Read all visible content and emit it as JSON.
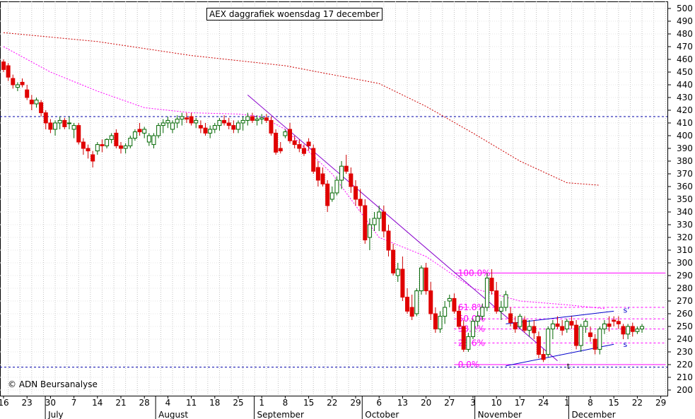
{
  "title": "AEX daggrafiek woensdag 17 december",
  "credit": "© ADN Beursanalyse",
  "chart_data": {
    "type": "candlestick",
    "title": "AEX daggrafiek woensdag 17 december",
    "y_range": [
      200,
      500
    ],
    "y_ticks": [
      200,
      210,
      220,
      230,
      240,
      250,
      260,
      270,
      280,
      290,
      300,
      310,
      320,
      330,
      340,
      350,
      360,
      370,
      380,
      390,
      400,
      410,
      420,
      430,
      440,
      450,
      460,
      470,
      480,
      490,
      500
    ],
    "grid": true,
    "x_range": [
      0,
      136
    ],
    "x_ticks": [
      {
        "i": 0,
        "label": "16"
      },
      {
        "i": 5,
        "label": "23"
      },
      {
        "i": 10,
        "label": "30"
      },
      {
        "i": 15,
        "label": "7"
      },
      {
        "i": 20,
        "label": "14"
      },
      {
        "i": 25,
        "label": "21"
      },
      {
        "i": 30,
        "label": "28"
      },
      {
        "i": 35,
        "label": "4"
      },
      {
        "i": 40,
        "label": "11"
      },
      {
        "i": 45,
        "label": "18"
      },
      {
        "i": 50,
        "label": "25"
      },
      {
        "i": 55,
        "label": "1"
      },
      {
        "i": 60,
        "label": "8"
      },
      {
        "i": 65,
        "label": "15"
      },
      {
        "i": 70,
        "label": "22"
      },
      {
        "i": 75,
        "label": "29"
      },
      {
        "i": 80,
        "label": "6"
      },
      {
        "i": 85,
        "label": "13"
      },
      {
        "i": 90,
        "label": "20"
      },
      {
        "i": 95,
        "label": "27"
      },
      {
        "i": 100,
        "label": "3"
      },
      {
        "i": 105,
        "label": "10"
      },
      {
        "i": 110,
        "label": "17"
      },
      {
        "i": 115,
        "label": "24"
      },
      {
        "i": 120,
        "label": "1"
      },
      {
        "i": 125,
        "label": "8"
      },
      {
        "i": 130,
        "label": "15"
      },
      {
        "i": 135,
        "label": "22"
      },
      {
        "i": 140,
        "label": "29"
      }
    ],
    "months": [
      {
        "i": 9.5,
        "label": "July"
      },
      {
        "i": 33,
        "label": "August"
      },
      {
        "i": 54,
        "label": "September"
      },
      {
        "i": 77,
        "label": "October"
      },
      {
        "i": 101,
        "label": "November"
      },
      {
        "i": 121,
        "label": "December"
      }
    ],
    "candles": [
      [
        458,
        460,
        450,
        452
      ],
      [
        455,
        457,
        443,
        446
      ],
      [
        445,
        448,
        437,
        440
      ],
      [
        438,
        442,
        435,
        440
      ],
      [
        442,
        445,
        438,
        440
      ],
      [
        436,
        440,
        428,
        430
      ],
      [
        428,
        432,
        420,
        425
      ],
      [
        425,
        430,
        422,
        428
      ],
      [
        426,
        428,
        415,
        418
      ],
      [
        418,
        420,
        405,
        410
      ],
      [
        410,
        413,
        402,
        405
      ],
      [
        405,
        412,
        400,
        410
      ],
      [
        410,
        415,
        405,
        412
      ],
      [
        412,
        414,
        405,
        407
      ],
      [
        410,
        415,
        405,
        410
      ],
      [
        405,
        410,
        398,
        408
      ],
      [
        408,
        410,
        393,
        395
      ],
      [
        395,
        398,
        385,
        390
      ],
      [
        390,
        393,
        382,
        388
      ],
      [
        385,
        388,
        375,
        380
      ],
      [
        388,
        395,
        385,
        393
      ],
      [
        393,
        397,
        387,
        392
      ],
      [
        392,
        398,
        390,
        397
      ],
      [
        397,
        402,
        394,
        400
      ],
      [
        402,
        405,
        390,
        392
      ],
      [
        392,
        395,
        386,
        390
      ],
      [
        390,
        394,
        386,
        392
      ],
      [
        392,
        400,
        390,
        398
      ],
      [
        398,
        405,
        396,
        403
      ],
      [
        405,
        410,
        400,
        403
      ],
      [
        402,
        407,
        398,
        405
      ],
      [
        395,
        402,
        392,
        400
      ],
      [
        393,
        402,
        390,
        400
      ],
      [
        400,
        410,
        398,
        408
      ],
      [
        408,
        413,
        402,
        410
      ],
      [
        410,
        415,
        406,
        412
      ],
      [
        405,
        412,
        402,
        410
      ],
      [
        410,
        416,
        406,
        413
      ],
      [
        413,
        418,
        408,
        415
      ],
      [
        414,
        418,
        410,
        413
      ],
      [
        415,
        418,
        408,
        410
      ],
      [
        410,
        414,
        406,
        412
      ],
      [
        408,
        412,
        402,
        406
      ],
      [
        406,
        410,
        400,
        402
      ],
      [
        402,
        408,
        398,
        405
      ],
      [
        405,
        410,
        402,
        408
      ],
      [
        408,
        414,
        404,
        412
      ],
      [
        412,
        416,
        408,
        410
      ],
      [
        410,
        414,
        405,
        408
      ],
      [
        408,
        412,
        402,
        405
      ],
      [
        405,
        412,
        402,
        410
      ],
      [
        410,
        415,
        404,
        412
      ],
      [
        412,
        418,
        408,
        415
      ],
      [
        415,
        418,
        410,
        412
      ],
      [
        412,
        416,
        408,
        413
      ],
      [
        413,
        417,
        409,
        414
      ],
      [
        414,
        417,
        410,
        412
      ],
      [
        412,
        415,
        400,
        402
      ],
      [
        402,
        405,
        385,
        387
      ],
      [
        390,
        395,
        386,
        388
      ],
      [
        400,
        405,
        398,
        403
      ],
      [
        405,
        410,
        394,
        396
      ],
      [
        396,
        400,
        390,
        393
      ],
      [
        393,
        397,
        387,
        390
      ],
      [
        390,
        393,
        384,
        386
      ],
      [
        395,
        398,
        388,
        392
      ],
      [
        390,
        393,
        370,
        372
      ],
      [
        375,
        380,
        360,
        365
      ],
      [
        370,
        375,
        360,
        362
      ],
      [
        362,
        365,
        340,
        345
      ],
      [
        350,
        360,
        348,
        355
      ],
      [
        355,
        368,
        353,
        365
      ],
      [
        365,
        380,
        358,
        376
      ],
      [
        376,
        385,
        370,
        372
      ],
      [
        370,
        375,
        355,
        360
      ],
      [
        360,
        365,
        345,
        350
      ],
      [
        350,
        358,
        340,
        345
      ],
      [
        345,
        350,
        315,
        318
      ],
      [
        320,
        335,
        310,
        330
      ],
      [
        330,
        340,
        325,
        335
      ],
      [
        335,
        345,
        325,
        340
      ],
      [
        340,
        345,
        320,
        325
      ],
      [
        325,
        330,
        305,
        310
      ],
      [
        310,
        315,
        290,
        292
      ],
      [
        290,
        300,
        285,
        295
      ],
      [
        295,
        305,
        270,
        273
      ],
      [
        273,
        280,
        260,
        262
      ],
      [
        265,
        275,
        255,
        258
      ],
      [
        260,
        280,
        258,
        278
      ],
      [
        278,
        298,
        275,
        296
      ],
      [
        296,
        300,
        275,
        278
      ],
      [
        278,
        285,
        255,
        260
      ],
      [
        260,
        265,
        245,
        248
      ],
      [
        248,
        262,
        245,
        258
      ],
      [
        258,
        270,
        252,
        265
      ],
      [
        270,
        275,
        265,
        272
      ],
      [
        272,
        276,
        260,
        262
      ],
      [
        262,
        266,
        248,
        250
      ],
      [
        250,
        255,
        230,
        232
      ],
      [
        232,
        245,
        230,
        242
      ],
      [
        242,
        256,
        240,
        254
      ],
      [
        254,
        262,
        250,
        258
      ],
      [
        258,
        268,
        255,
        265
      ],
      [
        265,
        292,
        262,
        288
      ],
      [
        288,
        295,
        275,
        278
      ],
      [
        278,
        285,
        260,
        262
      ],
      [
        262,
        270,
        255,
        265
      ],
      [
        265,
        278,
        262,
        275
      ],
      [
        260,
        265,
        250,
        253
      ],
      [
        253,
        258,
        245,
        248
      ],
      [
        250,
        260,
        248,
        258
      ],
      [
        255,
        258,
        245,
        247
      ],
      [
        247,
        255,
        242,
        250
      ],
      [
        250,
        255,
        240,
        245
      ],
      [
        242,
        246,
        225,
        228
      ],
      [
        228,
        232,
        222,
        224
      ],
      [
        228,
        250,
        226,
        248
      ],
      [
        248,
        255,
        240,
        252
      ],
      [
        252,
        258,
        248,
        250
      ],
      [
        250,
        255,
        243,
        247
      ],
      [
        248,
        256,
        245,
        254
      ],
      [
        254,
        258,
        248,
        251
      ],
      [
        251,
        255,
        232,
        235
      ],
      [
        235,
        252,
        230,
        250
      ],
      [
        250,
        256,
        245,
        254
      ],
      [
        245,
        250,
        238,
        242
      ],
      [
        240,
        244,
        228,
        232
      ],
      [
        232,
        250,
        228,
        248
      ],
      [
        248,
        255,
        244,
        252
      ],
      [
        252,
        258,
        246,
        250
      ],
      [
        255,
        258,
        250,
        254
      ],
      [
        254,
        258,
        248,
        252
      ],
      [
        250,
        252,
        240,
        244
      ],
      [
        244,
        252,
        240,
        250
      ],
      [
        250,
        253,
        242,
        246
      ],
      [
        246,
        250,
        244,
        248
      ],
      [
        248,
        252,
        245,
        250
      ]
    ],
    "series": [
      {
        "name": "",
        "style": "dotted",
        "color": "#cc0000",
        "x": [
          0,
          20,
          40,
          60,
          80,
          90,
          100,
          110,
          120,
          127
        ],
        "y": [
          481,
          474,
          463,
          455,
          441,
          423,
          402,
          380,
          363,
          361
        ]
      },
      {
        "name": "",
        "style": "dotted",
        "color": "#ff00ff",
        "x": [
          0,
          10,
          20,
          30,
          40,
          50,
          55,
          60,
          70,
          80,
          90,
          100,
          110,
          120,
          128
        ],
        "y": [
          470,
          450,
          435,
          422,
          418,
          417,
          415,
          405,
          370,
          320,
          305,
          280,
          270,
          267,
          264
        ]
      }
    ],
    "horizontal_levels": [
      {
        "y": 415,
        "color": "#0000aa",
        "style": "dashed"
      },
      {
        "y": 218,
        "color": "#0000aa",
        "style": "dashed"
      }
    ],
    "fibonacci": [
      {
        "label": "100.0%",
        "y": 292
      },
      {
        "label": "61.8%",
        "y": 265
      },
      {
        "label": "50.0%",
        "y": 256
      },
      {
        "label": "38.2%",
        "y": 248
      },
      {
        "label": "23.6%",
        "y": 237
      },
      {
        "label": "0.0%",
        "y": 220
      }
    ],
    "trendlines": [
      {
        "x": [
          52,
          118
        ],
        "y": [
          432,
          223
        ],
        "color": "#8800cc"
      },
      {
        "x": [
          107,
          130
        ],
        "y": [
          252,
          262
        ],
        "color": "#0000cc"
      },
      {
        "x": [
          107,
          130
        ],
        "y": [
          219,
          236
        ],
        "color": "#0000cc"
      }
    ],
    "markers": [
      {
        "x": 132,
        "y": 263,
        "text": "s'",
        "color": "#0000cc"
      },
      {
        "x": 132,
        "y": 236,
        "text": "s",
        "color": "#0000cc"
      },
      {
        "x": 120,
        "y": 219,
        "text": "t",
        "color": "#000000"
      }
    ]
  }
}
